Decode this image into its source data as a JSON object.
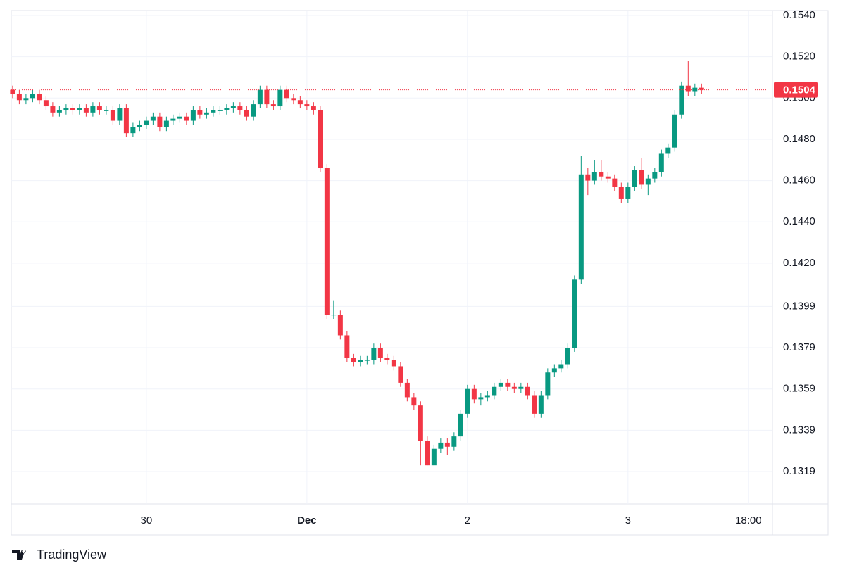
{
  "brand": "TradingView",
  "chart_data": {
    "type": "candlestick",
    "x": [
      0,
      1,
      2,
      3,
      4,
      5,
      6,
      7,
      8,
      9,
      10,
      11,
      12,
      13,
      14,
      15,
      16,
      17,
      18,
      19,
      20,
      21,
      22,
      23,
      24,
      25,
      26,
      27,
      28,
      29,
      30,
      31,
      32,
      33,
      34,
      35,
      36,
      37,
      38,
      39,
      40,
      41,
      42,
      43,
      44,
      45,
      46,
      47,
      48,
      49,
      50,
      51,
      52,
      53,
      54,
      55,
      56,
      57,
      58,
      59,
      60,
      61,
      62,
      63,
      64,
      65,
      66,
      67,
      68,
      69,
      70,
      71,
      72,
      73,
      74,
      75,
      76,
      77,
      78,
      79,
      80,
      81,
      82,
      83,
      84,
      85,
      86,
      87,
      88,
      89,
      90,
      91,
      92,
      93,
      94,
      95,
      96,
      97,
      98,
      99,
      100,
      101,
      102,
      103
    ],
    "open": [
      0.1504,
      0.1502,
      0.1499,
      0.15,
      0.1502,
      0.1499,
      0.1496,
      0.1493,
      0.1494,
      0.1495,
      0.1494,
      0.1495,
      0.1493,
      0.1496,
      0.1494,
      0.1494,
      0.1489,
      0.1495,
      0.1483,
      0.1486,
      0.1487,
      0.1489,
      0.1491,
      0.1486,
      0.1489,
      0.149,
      0.1491,
      0.1489,
      0.1494,
      0.1492,
      0.1493,
      0.1494,
      0.1494,
      0.1495,
      0.1496,
      0.1494,
      0.1491,
      0.1497,
      0.1504,
      0.1497,
      0.1496,
      0.1504,
      0.15,
      0.1499,
      0.1497,
      0.1496,
      0.1494,
      0.1466,
      0.1395,
      0.1395,
      0.1385,
      0.1374,
      0.1372,
      0.1373,
      0.1373,
      0.1379,
      0.1374,
      0.1373,
      0.137,
      0.1362,
      0.1355,
      0.1351,
      0.1334,
      0.1322,
      0.133,
      0.1333,
      0.1331,
      0.1336,
      0.1347,
      0.1359,
      0.1354,
      0.1355,
      0.1356,
      0.136,
      0.1362,
      0.136,
      0.1359,
      0.136,
      0.1356,
      0.1347,
      0.1356,
      0.1367,
      0.1369,
      0.1371,
      0.1379,
      0.1412,
      0.1463,
      0.146,
      0.1464,
      0.1462,
      0.1461,
      0.1457,
      0.1451,
      0.1457,
      0.1465,
      0.1458,
      0.1461,
      0.1464,
      0.1473,
      0.1476,
      0.1492,
      0.1506,
      0.1503,
      0.1505
    ],
    "high": [
      0.1506,
      0.1504,
      0.1502,
      0.1504,
      0.1504,
      0.1501,
      0.1498,
      0.1496,
      0.1497,
      0.1497,
      0.1497,
      0.1497,
      0.1498,
      0.1498,
      0.1496,
      0.1496,
      0.1497,
      0.1497,
      0.1488,
      0.1489,
      0.1491,
      0.1493,
      0.1493,
      0.1491,
      0.1492,
      0.1493,
      0.1493,
      0.1496,
      0.1496,
      0.1495,
      0.1496,
      0.1496,
      0.1497,
      0.1498,
      0.1498,
      0.1496,
      0.1499,
      0.1506,
      0.1506,
      0.1499,
      0.1506,
      0.1506,
      0.1502,
      0.1501,
      0.1499,
      0.1498,
      0.1496,
      0.1468,
      0.1402,
      0.1397,
      0.1387,
      0.1376,
      0.1375,
      0.1375,
      0.1381,
      0.1381,
      0.1376,
      0.1375,
      0.1372,
      0.1364,
      0.1357,
      0.1353,
      0.1336,
      0.1332,
      0.1335,
      0.1335,
      0.1338,
      0.1349,
      0.1361,
      0.1361,
      0.1357,
      0.1358,
      0.1362,
      0.1364,
      0.1364,
      0.1362,
      0.1362,
      0.1362,
      0.1358,
      0.1358,
      0.1369,
      0.1371,
      0.1373,
      0.1381,
      0.1414,
      0.1472,
      0.1466,
      0.147,
      0.147,
      0.1464,
      0.1463,
      0.1459,
      0.1459,
      0.1467,
      0.1471,
      0.1463,
      0.1466,
      0.1475,
      0.1478,
      0.1494,
      0.1508,
      0.1518,
      0.1507,
      0.1507
    ],
    "low": [
      0.15,
      0.1497,
      0.1497,
      0.1498,
      0.1497,
      0.1494,
      0.1491,
      0.1491,
      0.1492,
      0.1492,
      0.1492,
      0.1491,
      0.1491,
      0.1492,
      0.1492,
      0.1487,
      0.1487,
      0.1481,
      0.1481,
      0.1484,
      0.1485,
      0.1487,
      0.1484,
      0.1484,
      0.1487,
      0.1488,
      0.1487,
      0.1487,
      0.149,
      0.149,
      0.1491,
      0.1492,
      0.1492,
      0.1493,
      0.1492,
      0.1489,
      0.1489,
      0.1495,
      0.1495,
      0.1494,
      0.1494,
      0.1498,
      0.1497,
      0.1495,
      0.1494,
      0.1492,
      0.1464,
      0.1393,
      0.1393,
      0.1383,
      0.1372,
      0.137,
      0.137,
      0.1371,
      0.1371,
      0.1372,
      0.1371,
      0.1368,
      0.136,
      0.1353,
      0.1349,
      0.1322,
      0.1322,
      0.1322,
      0.1328,
      0.1327,
      0.1329,
      0.1334,
      0.1345,
      0.1352,
      0.1351,
      0.1353,
      0.1354,
      0.1358,
      0.1358,
      0.1357,
      0.1357,
      0.1354,
      0.1345,
      0.1345,
      0.1354,
      0.1365,
      0.1367,
      0.1369,
      0.1377,
      0.141,
      0.1453,
      0.1458,
      0.146,
      0.1459,
      0.1455,
      0.1449,
      0.1449,
      0.1455,
      0.1456,
      0.1453,
      0.1459,
      0.1462,
      0.1471,
      0.1474,
      0.149,
      0.1501,
      0.1501,
      0.1502
    ],
    "close": [
      0.1502,
      0.1499,
      0.15,
      0.1502,
      0.1499,
      0.1496,
      0.1493,
      0.1494,
      0.1495,
      0.1494,
      0.1495,
      0.1493,
      0.1496,
      0.1494,
      0.1494,
      0.1489,
      0.1495,
      0.1483,
      0.1486,
      0.1487,
      0.1489,
      0.1491,
      0.1486,
      0.1489,
      0.149,
      0.1491,
      0.1489,
      0.1494,
      0.1492,
      0.1493,
      0.1494,
      0.1494,
      0.1495,
      0.1496,
      0.1494,
      0.1491,
      0.1497,
      0.1504,
      0.1497,
      0.1496,
      0.1504,
      0.15,
      0.1499,
      0.1497,
      0.1496,
      0.1494,
      0.1466,
      0.1395,
      0.1395,
      0.1385,
      0.1374,
      0.1372,
      0.1373,
      0.1373,
      0.1379,
      0.1374,
      0.1373,
      0.137,
      0.1362,
      0.1355,
      0.1351,
      0.1334,
      0.1322,
      0.133,
      0.1333,
      0.1331,
      0.1336,
      0.1347,
      0.1359,
      0.1354,
      0.1355,
      0.1356,
      0.136,
      0.1362,
      0.136,
      0.1359,
      0.136,
      0.1356,
      0.1347,
      0.1356,
      0.1367,
      0.1369,
      0.1371,
      0.1379,
      0.1412,
      0.1463,
      0.146,
      0.1464,
      0.1462,
      0.1461,
      0.1457,
      0.1451,
      0.1457,
      0.1465,
      0.1458,
      0.1461,
      0.1464,
      0.1473,
      0.1476,
      0.1492,
      0.1506,
      0.1503,
      0.1505,
      0.1504
    ],
    "up_color": "#089981",
    "down_color": "#f23645",
    "last_price": 0.1504,
    "xlim": [
      -0.2,
      113.6
    ],
    "xticks": [
      {
        "value": 20,
        "label": "30"
      },
      {
        "value": 44,
        "label": "Dec"
      },
      {
        "value": 68,
        "label": "2"
      },
      {
        "value": 92,
        "label": "3"
      },
      {
        "value": 110,
        "label": "18:00"
      }
    ],
    "ylim": [
      0.13033,
      0.15424
    ],
    "yticks": [
      {
        "value": 0.154,
        "label": "0.1540"
      },
      {
        "value": 0.152,
        "label": "0.1520"
      },
      {
        "value": 0.15,
        "label": "0.1500"
      },
      {
        "value": 0.148,
        "label": "0.1480"
      },
      {
        "value": 0.146,
        "label": "0.1460"
      },
      {
        "value": 0.144,
        "label": "0.1440"
      },
      {
        "value": 0.142,
        "label": "0.1420"
      },
      0.1399,
      0.1379,
      0.1359,
      0.1339,
      0.1319
    ],
    "grid": true
  }
}
